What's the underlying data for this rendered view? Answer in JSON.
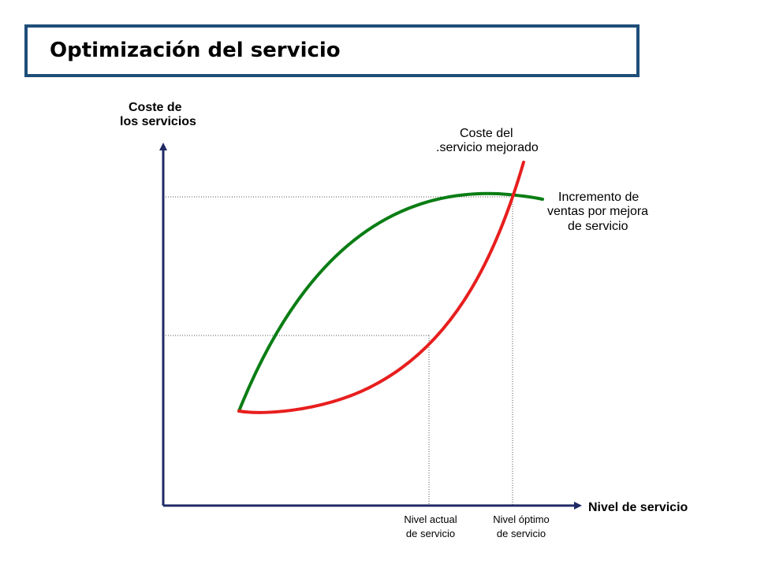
{
  "title": "Optimización del servicio",
  "y_axis_label": [
    "Coste de",
    "los servicios"
  ],
  "x_axis_label": "Nivel de servicio",
  "curves": {
    "cost": {
      "label": [
        "Coste del",
        ".servicio mejorado"
      ],
      "color": "#e81e1e"
    },
    "sales": {
      "label": [
        "Incremento de",
        "ventas por mejora",
        "de servicio"
      ],
      "color": "#0a7d14"
    }
  },
  "axis_color": "#1f2a66",
  "title_border_color": "#1f4e79",
  "markers": [
    {
      "label": [
        "Nivel actual",
        "de servicio"
      ]
    },
    {
      "label": [
        "Nivel óptimo",
        "de servicio"
      ]
    }
  ]
}
